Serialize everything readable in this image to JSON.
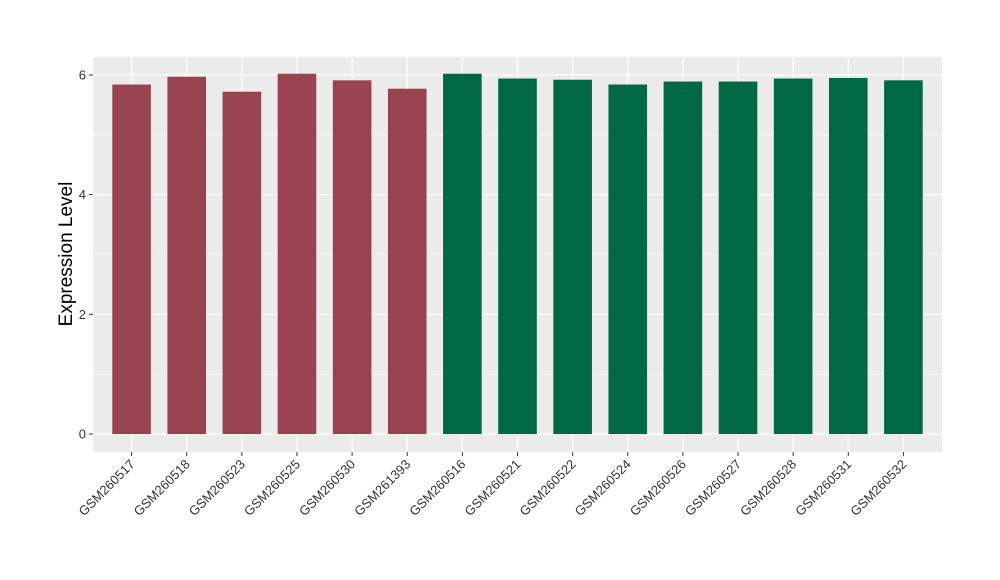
{
  "chart_data": {
    "type": "bar",
    "title": "",
    "xlabel": "",
    "ylabel": "Expression Level",
    "ylim": [
      -0.3,
      6.3
    ],
    "yticks": [
      0,
      2,
      4,
      6
    ],
    "ytick_labels": [
      "0",
      "2",
      "4",
      "6"
    ],
    "grid": true,
    "legend": "none",
    "categories": [
      "GSM260517",
      "GSM260518",
      "GSM260523",
      "GSM260525",
      "GSM260530",
      "GSM261393",
      "GSM260516",
      "GSM260521",
      "GSM260522",
      "GSM260524",
      "GSM260526",
      "GSM260527",
      "GSM260528",
      "GSM260531",
      "GSM260532"
    ],
    "values": [
      5.84,
      5.97,
      5.72,
      6.02,
      5.91,
      5.77,
      6.02,
      5.94,
      5.92,
      5.84,
      5.89,
      5.89,
      5.94,
      5.95,
      5.91
    ],
    "bar_colors": [
      "#9a4350",
      "#9a4350",
      "#9a4350",
      "#9a4350",
      "#9a4350",
      "#9a4350",
      "#006843",
      "#006843",
      "#006843",
      "#006843",
      "#006843",
      "#006843",
      "#006843",
      "#006843",
      "#006843"
    ],
    "panel_background": "#ebebeb",
    "grid_color": "#ffffff"
  }
}
